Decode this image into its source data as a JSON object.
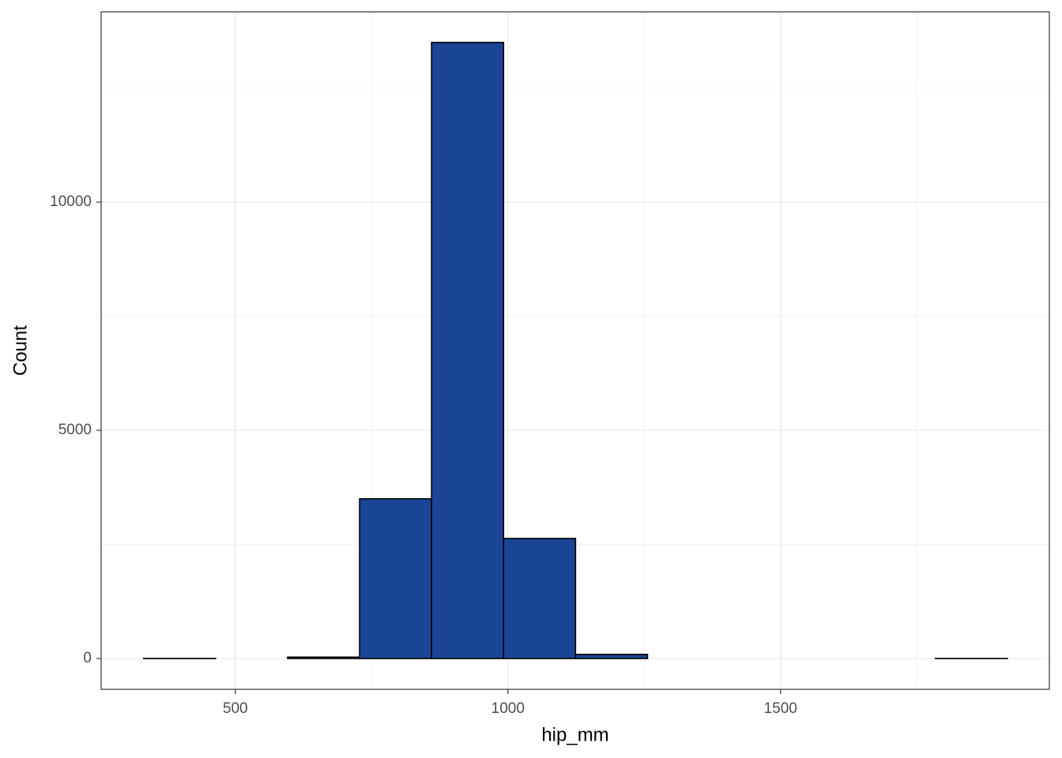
{
  "chart_data": {
    "type": "histogram",
    "x_label": "hip_mm",
    "y_label": "Count",
    "bins": [
      332,
      464,
      596,
      728,
      860,
      992,
      1124,
      1256,
      1388,
      1520,
      1652,
      1784,
      1916
    ],
    "counts": [
      2,
      0,
      30,
      3500,
      13500,
      2630,
      90,
      0,
      0,
      0,
      0,
      1
    ],
    "color": "#1a4597",
    "edge_color": "#000000",
    "xlim": [
      254,
      1993
    ],
    "xticks": [
      500,
      1000,
      1500
    ],
    "xminor": [
      750,
      1250,
      1750
    ],
    "ylim": [
      -675,
      14170
    ],
    "yticks": [
      0,
      5000,
      10000
    ],
    "yminor": [
      2500,
      7500,
      12500
    ],
    "grid": true
  }
}
